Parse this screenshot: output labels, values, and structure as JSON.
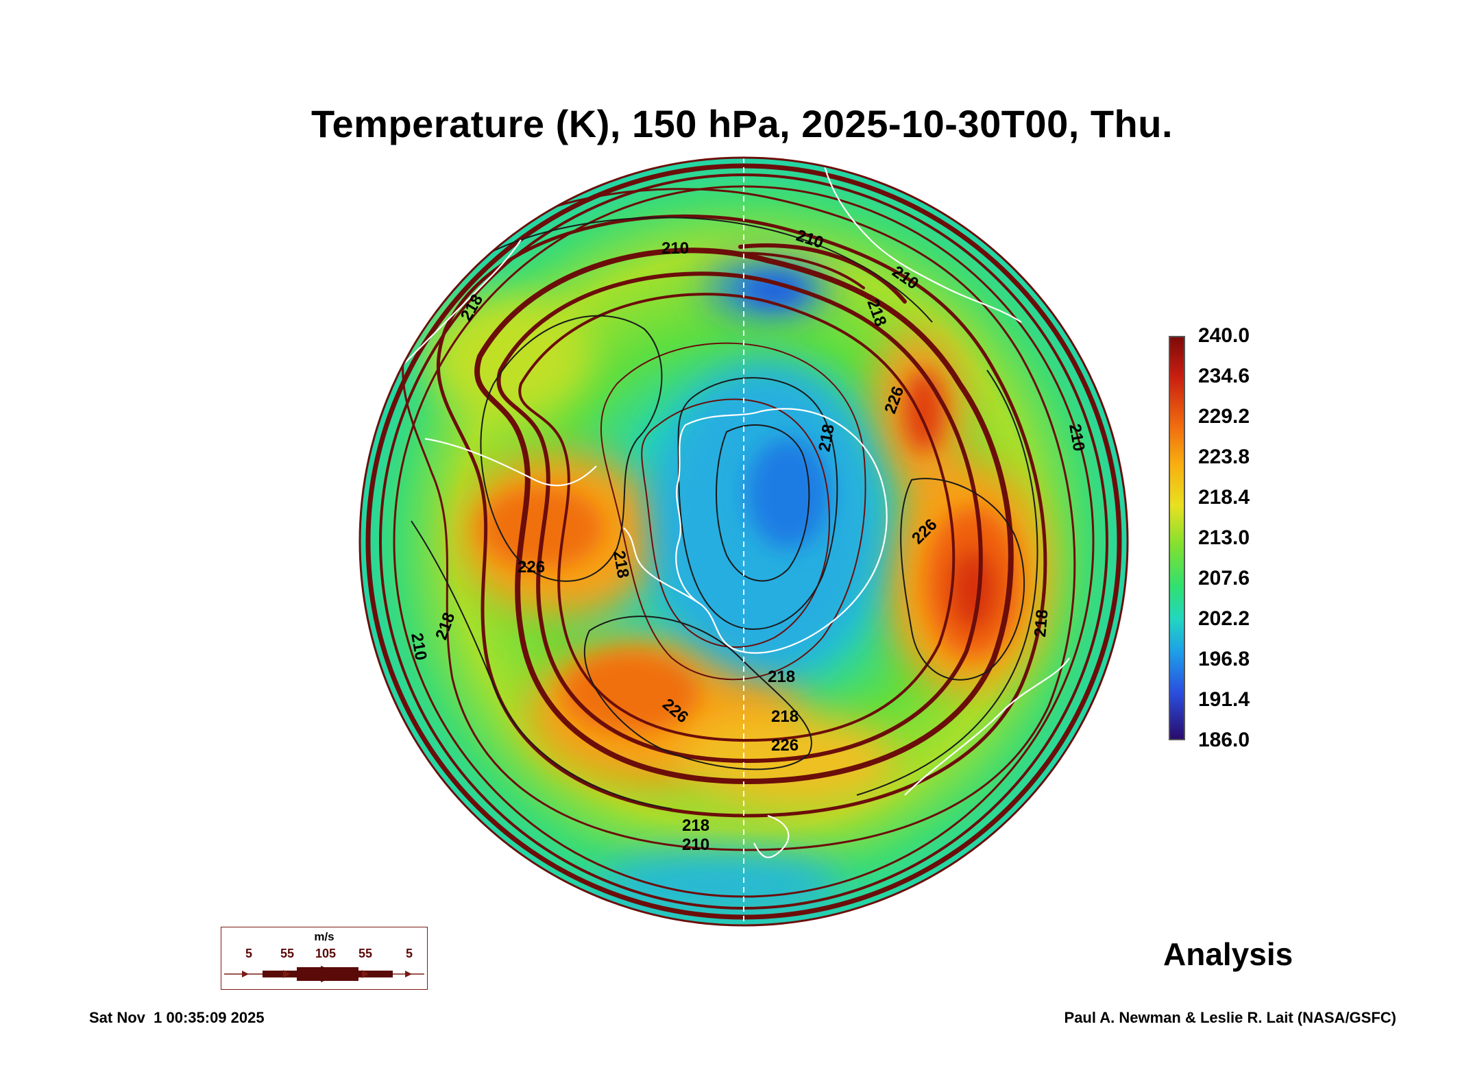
{
  "title": "Temperature (K), 150 hPa, 2025-10-30T00, Thu.",
  "map": {
    "projection": "south polar stereographic",
    "variable": "Temperature (K)",
    "level": "150 hPa",
    "valid_time": "2025-10-30T00",
    "contour_labels": [
      "210",
      "210",
      "210",
      "218",
      "226",
      "218",
      "218",
      "226",
      "226",
      "210",
      "218",
      "218",
      "226",
      "218",
      "210",
      "218",
      "218",
      "226",
      "210",
      "218"
    ],
    "colors": {
      "land_outline": "#ffffff",
      "streamline": "#6b0e0a",
      "contour": "#1a1a1a",
      "background": "#ffffff"
    }
  },
  "colorbar": {
    "unit": "K",
    "ticks": [
      "240.0",
      "234.6",
      "229.2",
      "223.8",
      "218.4",
      "213.0",
      "207.6",
      "202.2",
      "196.8",
      "191.4",
      "186.0"
    ],
    "range": [
      186.0,
      240.0
    ],
    "colors": [
      "#2a0a6a",
      "#4a10c8",
      "#1e6ae6",
      "#20b8e8",
      "#22d6b0",
      "#30e060",
      "#a8e030",
      "#f0e020",
      "#f8b010",
      "#f07010",
      "#d83010",
      "#7a0a0a"
    ]
  },
  "wind_key": {
    "unit": "m/s",
    "values": [
      "5",
      "55",
      "105",
      "55",
      "5"
    ]
  },
  "label": "Analysis",
  "footer": {
    "timestamp": "Sat Nov  1 00:35:09 2025",
    "credit": "Paul A. Newman & Leslie R. Lait (NASA/GSFC)"
  }
}
